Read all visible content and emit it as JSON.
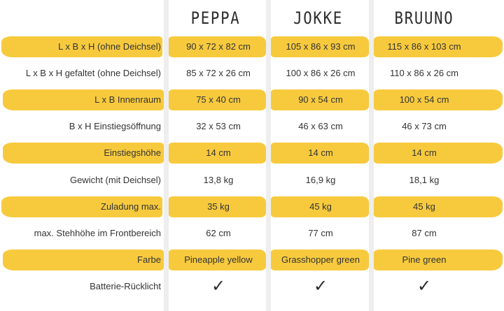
{
  "columns": [
    "PEPPA",
    "JOKKE",
    "BRUUNO"
  ],
  "rows": [
    {
      "label": "L x B x H (ohne Deichsel)",
      "values": [
        "90 x 72 x 82 cm",
        "105 x 86 x 93 cm",
        "115 x 86 x 103 cm"
      ],
      "highlight": true
    },
    {
      "label": "L x B x H gefaltet (ohne Deichsel)",
      "values": [
        "85 x 72 x 26 cm",
        "100 x 86 x 26 cm",
        "110 x 86 x 26 cm"
      ],
      "highlight": false
    },
    {
      "label": "L x B Innenraum",
      "values": [
        "75 x 40 cm",
        "90 x 54 cm",
        "100 x 54 cm"
      ],
      "highlight": true
    },
    {
      "label": "B x H Einstiegsöffnung",
      "values": [
        "32 x 53 cm",
        "46 x 63 cm",
        "46 x 73 cm"
      ],
      "highlight": false
    },
    {
      "label": "Einstiegshöhe",
      "values": [
        "14 cm",
        "14 cm",
        "14 cm"
      ],
      "highlight": true
    },
    {
      "label": "Gewicht (mit Deichsel)",
      "values": [
        "13,8 kg",
        "16,9 kg",
        "18,1 kg"
      ],
      "highlight": false
    },
    {
      "label": "Zuladung max.",
      "values": [
        "35 kg",
        "45 kg",
        "45 kg"
      ],
      "highlight": true
    },
    {
      "label": "max. Stehhöhe im Frontbereich",
      "values": [
        "62 cm",
        "77 cm",
        "87 cm"
      ],
      "highlight": false
    },
    {
      "label": "Farbe",
      "values": [
        "Pineapple yellow",
        "Grasshopper green",
        "Pine green"
      ],
      "highlight": true
    },
    {
      "label": "Batterie-Rücklicht",
      "values": [
        "✓",
        "✓",
        "✓"
      ],
      "highlight": false
    }
  ],
  "colors": {
    "highlight": "#f7ca3e",
    "gutter": "#eeeeee",
    "text": "#333333"
  },
  "icons": {
    "check": "check-icon"
  }
}
